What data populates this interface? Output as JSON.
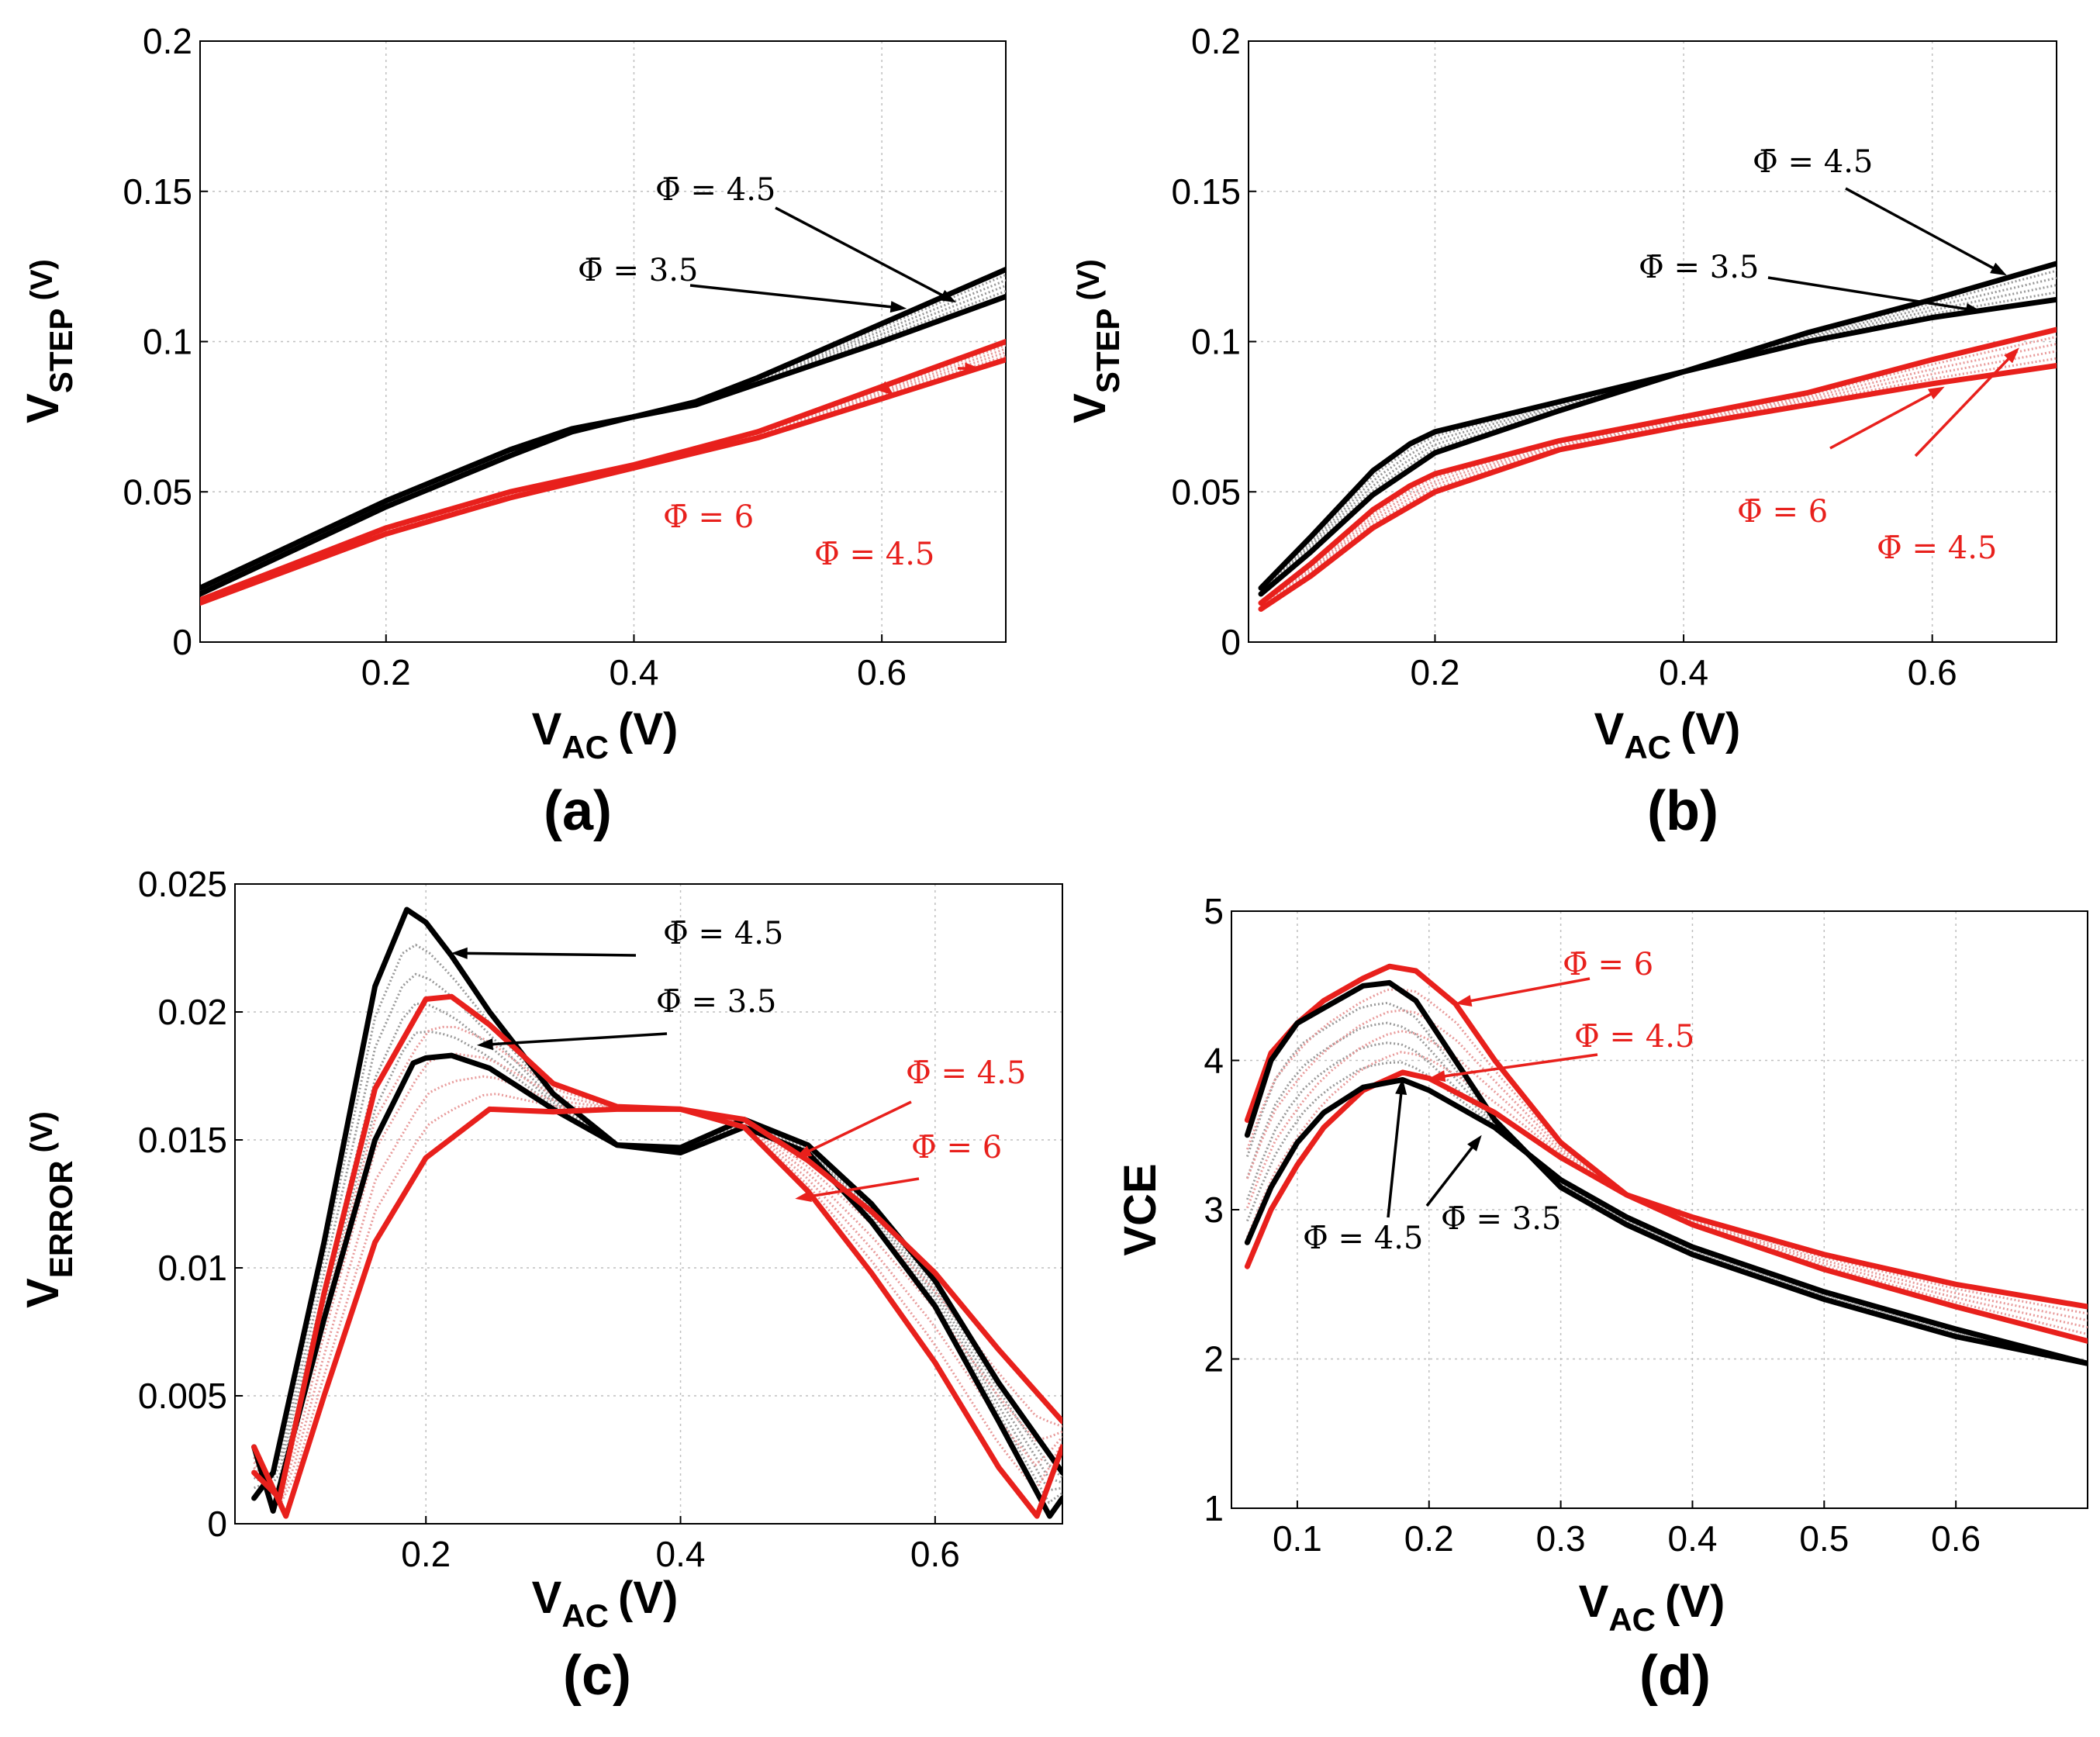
{
  "figure_title": "",
  "colors": {
    "black": "#000000",
    "red": "#e8201c",
    "grid": "#bfbfbf",
    "grey_fill": "#999999",
    "pink_fill": "#e89a9a"
  },
  "chart_data": [
    {
      "id": "a",
      "panel_label": "(a)",
      "type": "line",
      "xlabel_main": "V",
      "xlabel_sub": "AC",
      "xlabel_unit": "(V)",
      "ylabel_main": "V",
      "ylabel_sub": "STEP",
      "ylabel_unit": "(V)",
      "xlim": [
        0.05,
        0.7
      ],
      "ylim": [
        0,
        0.2
      ],
      "xticks": [
        0.2,
        0.4,
        0.6
      ],
      "xtick_labels": [
        "0.2",
        "0.4",
        "0.6"
      ],
      "yticks": [
        0,
        0.05,
        0.1,
        0.15,
        0.2
      ],
      "ytick_labels": [
        "0",
        "0.05",
        "0.1",
        "0.15",
        "0.2"
      ],
      "grid": true,
      "series": [
        {
          "name": "Φ̄ = 4.5",
          "color": "#000000",
          "style": "solid",
          "x": [
            0.05,
            0.2,
            0.3,
            0.35,
            0.4,
            0.45,
            0.5,
            0.6,
            0.7
          ],
          "y": [
            0.018,
            0.047,
            0.064,
            0.071,
            0.075,
            0.08,
            0.088,
            0.106,
            0.124
          ]
        },
        {
          "name": "Φ̄ = 3.5",
          "color": "#000000",
          "style": "solid",
          "x": [
            0.05,
            0.2,
            0.3,
            0.35,
            0.4,
            0.45,
            0.5,
            0.6,
            0.7
          ],
          "y": [
            0.016,
            0.045,
            0.062,
            0.07,
            0.075,
            0.079,
            0.086,
            0.1,
            0.115
          ]
        },
        {
          "name": "Φ̄ = 6",
          "color": "#e8201c",
          "style": "solid",
          "x": [
            0.05,
            0.2,
            0.3,
            0.4,
            0.5,
            0.6,
            0.7
          ],
          "y": [
            0.014,
            0.038,
            0.05,
            0.059,
            0.07,
            0.085,
            0.1
          ]
        },
        {
          "name": "Φ̄ = 4.5",
          "color": "#e8201c",
          "style": "solid",
          "x": [
            0.05,
            0.2,
            0.3,
            0.4,
            0.5,
            0.6,
            0.7
          ],
          "y": [
            0.013,
            0.036,
            0.048,
            0.058,
            0.068,
            0.081,
            0.094
          ]
        }
      ],
      "annotations": [
        {
          "text": "Φ̄ = 4.5",
          "color": "#000000",
          "point_x": 0.66,
          "point_y": 0.113
        },
        {
          "text": "Φ̄ = 3.5",
          "color": "#000000",
          "point_x": 0.62,
          "point_y": 0.111
        },
        {
          "text": "Φ̄ = 6",
          "color": "#e8201c",
          "point_x": 0.61,
          "point_y": 0.082
        },
        {
          "text": "Φ̄ = 4.5",
          "color": "#e8201c",
          "point_x": 0.68,
          "point_y": 0.091
        }
      ]
    },
    {
      "id": "b",
      "panel_label": "(b)",
      "type": "line",
      "xlabel_main": "V",
      "xlabel_sub": "AC",
      "xlabel_unit": "(V)",
      "ylabel_main": "V",
      "ylabel_sub": "STEP",
      "ylabel_unit": "(V)",
      "xlim": [
        0.05,
        0.7
      ],
      "ylim": [
        0,
        0.2
      ],
      "xticks": [
        0.2,
        0.4,
        0.6
      ],
      "xtick_labels": [
        "0.2",
        "0.4",
        "0.6"
      ],
      "yticks": [
        0,
        0.05,
        0.1,
        0.15,
        0.2
      ],
      "ytick_labels": [
        "0",
        "0.05",
        "0.1",
        "0.15",
        "0.2"
      ],
      "grid": true,
      "series": [
        {
          "name": "Φ̄ = 4.5",
          "color": "#000000",
          "style": "solid",
          "x": [
            0.06,
            0.1,
            0.15,
            0.18,
            0.2,
            0.3,
            0.4,
            0.5,
            0.6,
            0.7
          ],
          "y": [
            0.018,
            0.035,
            0.057,
            0.066,
            0.07,
            0.08,
            0.09,
            0.103,
            0.114,
            0.126
          ]
        },
        {
          "name": "Φ̄ = 3.5",
          "color": "#000000",
          "style": "solid",
          "x": [
            0.06,
            0.1,
            0.15,
            0.2,
            0.3,
            0.4,
            0.5,
            0.6,
            0.7
          ],
          "y": [
            0.016,
            0.03,
            0.049,
            0.063,
            0.077,
            0.09,
            0.1,
            0.108,
            0.114
          ]
        },
        {
          "name": "Φ̄ = 6",
          "color": "#e8201c",
          "style": "solid",
          "x": [
            0.06,
            0.1,
            0.15,
            0.18,
            0.2,
            0.3,
            0.4,
            0.5,
            0.6,
            0.7
          ],
          "y": [
            0.013,
            0.026,
            0.044,
            0.052,
            0.056,
            0.067,
            0.075,
            0.083,
            0.094,
            0.104
          ]
        },
        {
          "name": "Φ̄ = 4.5",
          "color": "#e8201c",
          "style": "solid",
          "x": [
            0.06,
            0.1,
            0.15,
            0.2,
            0.3,
            0.4,
            0.5,
            0.6,
            0.7
          ],
          "y": [
            0.011,
            0.022,
            0.038,
            0.05,
            0.064,
            0.072,
            0.079,
            0.086,
            0.092
          ]
        }
      ],
      "annotations": [
        {
          "text": "Φ̄ = 4.5",
          "color": "#000000",
          "point_x": 0.66,
          "point_y": 0.122
        },
        {
          "text": "Φ̄ = 3.5",
          "color": "#000000",
          "point_x": 0.64,
          "point_y": 0.11
        },
        {
          "text": "Φ̄ = 6",
          "color": "#e8201c",
          "point_x": 0.61,
          "point_y": 0.085
        },
        {
          "text": "Φ̄ = 4.5",
          "color": "#e8201c",
          "point_x": 0.67,
          "point_y": 0.098
        }
      ]
    },
    {
      "id": "c",
      "panel_label": "(c)",
      "type": "line",
      "xlabel_main": "V",
      "xlabel_sub": "AC",
      "xlabel_unit": "(V)",
      "ylabel_main": "V",
      "ylabel_sub": "ERROR",
      "ylabel_unit": "(V)",
      "xlim": [
        0.05,
        0.7
      ],
      "ylim": [
        0,
        0.025
      ],
      "xticks": [
        0.2,
        0.4,
        0.6
      ],
      "xtick_labels": [
        "0.2",
        "0.4",
        "0.6"
      ],
      "yticks": [
        0,
        0.005,
        0.01,
        0.015,
        0.02,
        0.025
      ],
      "ytick_labels": [
        "0",
        "0.005",
        "0.01",
        "0.015",
        "0.02",
        "0.025"
      ],
      "grid": true,
      "series": [
        {
          "name": "Φ̄ = 4.5",
          "color": "#000000",
          "style": "solid",
          "x": [
            0.065,
            0.08,
            0.12,
            0.16,
            0.185,
            0.2,
            0.22,
            0.25,
            0.3,
            0.35,
            0.4,
            0.45,
            0.5,
            0.55,
            0.6,
            0.65,
            0.7
          ],
          "y": [
            0.001,
            0.002,
            0.011,
            0.021,
            0.024,
            0.0235,
            0.0222,
            0.02,
            0.0168,
            0.0148,
            0.0147,
            0.0158,
            0.0148,
            0.0125,
            0.0095,
            0.0055,
            0.002
          ]
        },
        {
          "name": "Φ̄ = 3.5",
          "color": "#000000",
          "style": "solid",
          "x": [
            0.065,
            0.08,
            0.12,
            0.16,
            0.19,
            0.2,
            0.22,
            0.25,
            0.3,
            0.35,
            0.4,
            0.45,
            0.5,
            0.55,
            0.6,
            0.65,
            0.69,
            0.7
          ],
          "y": [
            0.003,
            0.0005,
            0.008,
            0.015,
            0.018,
            0.0182,
            0.0183,
            0.0178,
            0.0162,
            0.0148,
            0.0145,
            0.0155,
            0.0145,
            0.0118,
            0.0085,
            0.004,
            0.0003,
            0.001
          ]
        },
        {
          "name": "Φ̄ = 4.5",
          "color": "#e8201c",
          "style": "solid",
          "x": [
            0.065,
            0.085,
            0.12,
            0.16,
            0.2,
            0.22,
            0.25,
            0.3,
            0.35,
            0.4,
            0.45,
            0.5,
            0.55,
            0.6,
            0.65,
            0.7
          ],
          "y": [
            0.002,
            0.001,
            0.009,
            0.017,
            0.0205,
            0.0206,
            0.0195,
            0.0172,
            0.0163,
            0.0162,
            0.0158,
            0.0142,
            0.0122,
            0.0098,
            0.0068,
            0.004
          ]
        },
        {
          "name": "Φ̄ = 6",
          "color": "#e8201c",
          "style": "solid",
          "x": [
            0.065,
            0.09,
            0.12,
            0.16,
            0.2,
            0.25,
            0.3,
            0.35,
            0.4,
            0.45,
            0.5,
            0.55,
            0.6,
            0.65,
            0.68,
            0.7
          ],
          "y": [
            0.003,
            0.0003,
            0.005,
            0.011,
            0.0143,
            0.0162,
            0.0161,
            0.0162,
            0.0162,
            0.0155,
            0.013,
            0.0098,
            0.0063,
            0.0022,
            0.0003,
            0.003
          ]
        }
      ],
      "annotations": [
        {
          "text": "Φ̄ = 4.5",
          "color": "#000000",
          "point_x": 0.22,
          "point_y": 0.0223
        },
        {
          "text": "Φ̄ = 3.5",
          "color": "#000000",
          "point_x": 0.24,
          "point_y": 0.0187
        },
        {
          "text": "Φ̄ = 4.5",
          "color": "#e8201c",
          "point_x": 0.49,
          "point_y": 0.0143
        },
        {
          "text": "Φ̄ = 6",
          "color": "#e8201c",
          "point_x": 0.49,
          "point_y": 0.0127
        }
      ]
    },
    {
      "id": "d",
      "panel_label": "(d)",
      "type": "line",
      "xlabel_main": "V",
      "xlabel_sub": "AC",
      "xlabel_unit": "(V)",
      "ylabel_main": "VCE",
      "ylabel_sub": "",
      "ylabel_unit": "",
      "xlim": [
        0.05,
        0.7
      ],
      "ylim": [
        1,
        5
      ],
      "xticks": [
        0.1,
        0.2,
        0.3,
        0.4,
        0.5,
        0.6
      ],
      "xtick_labels": [
        "0.1",
        "0.2",
        "0.3",
        "0.4",
        "0.5",
        "0.6"
      ],
      "yticks": [
        1,
        2,
        3,
        4,
        5
      ],
      "ytick_labels": [
        "1",
        "2",
        "3",
        "4",
        "5"
      ],
      "grid": true,
      "series": [
        {
          "name": "Φ̄ = 6",
          "color": "#e8201c",
          "style": "solid",
          "x": [
            0.062,
            0.08,
            0.1,
            0.12,
            0.15,
            0.17,
            0.19,
            0.22,
            0.25,
            0.3,
            0.35,
            0.4,
            0.5,
            0.6,
            0.7
          ],
          "y": [
            3.6,
            4.05,
            4.25,
            4.4,
            4.55,
            4.63,
            4.6,
            4.38,
            4.0,
            3.45,
            3.1,
            2.95,
            2.7,
            2.5,
            2.35
          ]
        },
        {
          "name": "Φ̄ = 4.5",
          "color": "#000000",
          "style": "solid",
          "x": [
            0.062,
            0.08,
            0.1,
            0.12,
            0.15,
            0.17,
            0.19,
            0.22,
            0.25,
            0.3,
            0.35,
            0.4,
            0.5,
            0.6,
            0.7
          ],
          "y": [
            3.5,
            4.0,
            4.25,
            4.35,
            4.5,
            4.52,
            4.4,
            4.0,
            3.6,
            3.15,
            2.9,
            2.7,
            2.4,
            2.15,
            1.97
          ]
        },
        {
          "name": "Φ̄ = 4.5",
          "color": "#e8201c",
          "style": "solid",
          "x": [
            0.062,
            0.08,
            0.1,
            0.12,
            0.15,
            0.18,
            0.2,
            0.25,
            0.3,
            0.35,
            0.4,
            0.5,
            0.6,
            0.7
          ],
          "y": [
            2.62,
            3.0,
            3.3,
            3.55,
            3.8,
            3.92,
            3.88,
            3.65,
            3.35,
            3.1,
            2.9,
            2.6,
            2.35,
            2.12
          ]
        },
        {
          "name": "Φ̄ = 3.5",
          "color": "#000000",
          "style": "solid",
          "x": [
            0.062,
            0.08,
            0.1,
            0.12,
            0.15,
            0.18,
            0.2,
            0.25,
            0.3,
            0.35,
            0.4,
            0.5,
            0.6,
            0.7
          ],
          "y": [
            2.78,
            3.15,
            3.45,
            3.65,
            3.82,
            3.87,
            3.8,
            3.55,
            3.2,
            2.95,
            2.75,
            2.45,
            2.2,
            1.97
          ]
        }
      ],
      "annotations": [
        {
          "text": "Φ̄ = 6",
          "color": "#e8201c",
          "point_x": 0.22,
          "point_y": 4.38
        },
        {
          "text": "Φ̄ = 4.5",
          "color": "#e8201c",
          "point_x": 0.2,
          "point_y": 3.88
        },
        {
          "text": "Φ̄ = 4.5",
          "color": "#000000",
          "point_x": 0.18,
          "point_y": 3.88
        },
        {
          "text": "Φ̄ = 3.5",
          "color": "#000000",
          "point_x": 0.24,
          "point_y": 3.5
        }
      ]
    }
  ]
}
